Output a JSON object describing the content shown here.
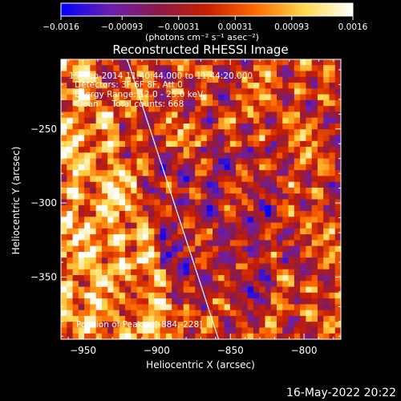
{
  "colorbar": {
    "tick_labels": [
      "-0.0016",
      "-0.00093",
      "-0.00031",
      "0.00031",
      "0.00093",
      "0.0016"
    ],
    "unit_label": "(photons cm⁻² s⁻¹ asec⁻²)",
    "range": [
      -0.0016,
      0.0016
    ],
    "colormap": [
      "#0000ff",
      "#6a1fb0",
      "#8b1a4a",
      "#c81e00",
      "#ff6a00",
      "#ffd84a",
      "#ffffff"
    ]
  },
  "date_stamp": "16-May-2022 20:22",
  "chart_data": {
    "type": "heatmap",
    "title": "Reconstructed RHESSI Image",
    "xlabel": "Heliocentric X (arcsec)",
    "ylabel": "Heliocentric Y (arcsec)",
    "xlim": [
      -965,
      -775
    ],
    "ylim": [
      -392,
      -203
    ],
    "x_ticks": [
      -950,
      -900,
      -850,
      -800
    ],
    "y_ticks": [
      -250,
      -300,
      -350
    ],
    "x_tick_labels": [
      "−950",
      "−900",
      "−850",
      "−800"
    ],
    "y_tick_labels": [
      "−250",
      "−300",
      "−350"
    ],
    "annotations": [
      "15-Sep-2014 11:40:44.000 to 11:44:20.000",
      "Detectors: 3F 6F 8F, Att 0",
      "Energy Range: 12.0 - 25.0 keV",
      "Clean     Total counts: 668"
    ],
    "peak_label": "Position of Peak = [-884,-228]",
    "peak_position": [
      -884,
      -228
    ],
    "limb_line": [
      [
        -920,
        -203
      ],
      [
        -858,
        -392
      ]
    ],
    "pixel_grid": [
      48,
      48
    ]
  }
}
